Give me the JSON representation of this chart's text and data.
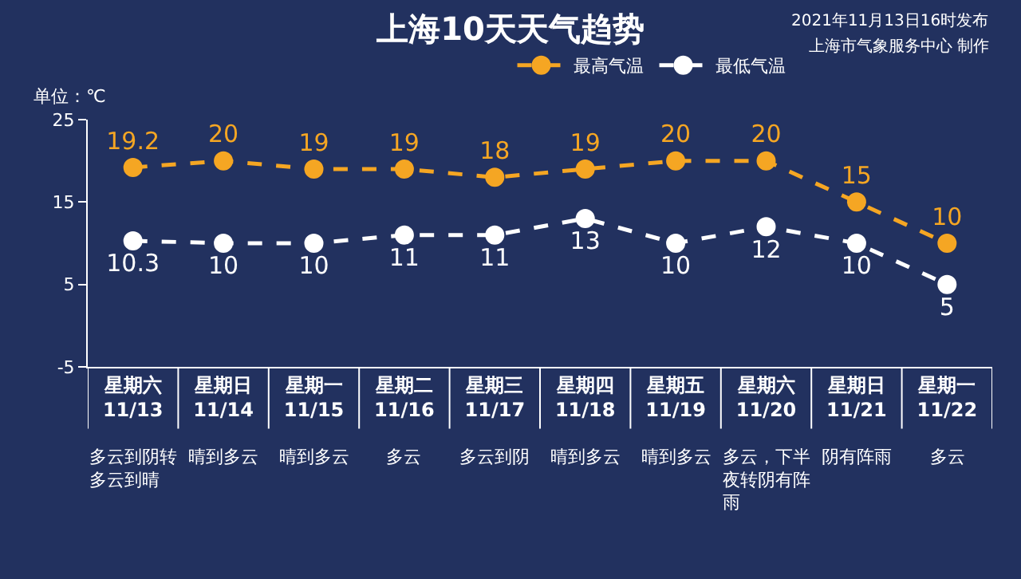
{
  "chart_data": {
    "type": "line",
    "title": "上海10天天气趋势",
    "ylabel": "单位：℃",
    "categories": [
      "星期六\n11/13",
      "星期日\n11/14",
      "星期一\n11/15",
      "星期二\n11/16",
      "星期三\n11/17",
      "星期四\n11/18",
      "星期五\n11/19",
      "星期六\n11/20",
      "星期日\n11/21",
      "星期一\n11/22"
    ],
    "series": [
      {
        "name": "最高气温",
        "color": "#f5a623",
        "values": [
          19.2,
          20,
          19,
          19,
          18,
          19,
          20,
          20,
          15,
          10
        ]
      },
      {
        "name": "最低气温",
        "color": "#ffffff",
        "values": [
          10.3,
          10,
          10,
          11,
          11,
          13,
          10,
          12,
          10,
          5
        ]
      }
    ],
    "ylim": [
      -5,
      25
    ],
    "yticks": [
      -5,
      5,
      15,
      25
    ],
    "grid": false,
    "legend": "top right",
    "marker": "circle",
    "line_style": "dashed",
    "data_labels": true,
    "annotations": [
      "2021年11月13日16时发布",
      "上海市气象服务中心 制作",
      "多云到阴转多云到晴",
      "晴到多云",
      "晴到多云",
      "多云",
      "多云到阴",
      "晴到多云",
      "晴到多云",
      "多云，下半夜转阴有阵雨",
      "阴有阵雨",
      "多云"
    ]
  }
}
